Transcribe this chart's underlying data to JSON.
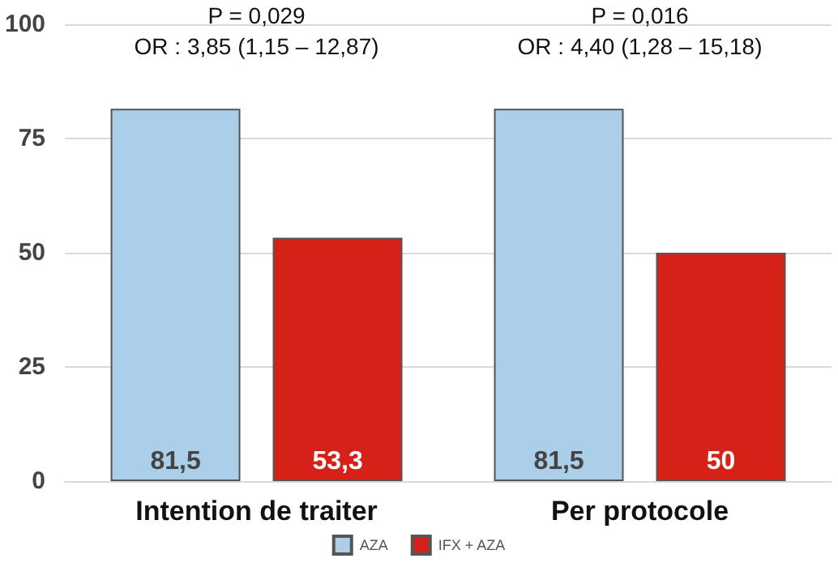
{
  "chart_data": {
    "type": "bar",
    "categories": [
      "Intention de traiter",
      "Per protocole"
    ],
    "series": [
      {
        "name": "AZA",
        "color": "#abcee9",
        "values": [
          81.5,
          81.5
        ],
        "value_labels": [
          "81,5",
          "81,5"
        ]
      },
      {
        "name": "IFX + AZA",
        "color": "#d62118",
        "values": [
          53.3,
          50
        ],
        "value_labels": [
          "53,3",
          "50"
        ]
      }
    ],
    "annotations": [
      "P = 0,029\nOR : 3,85 (1,15 – 12,87)",
      "P = 0,016\nOR : 4,40 (1,28 – 15,18)"
    ],
    "ylim": [
      0,
      100
    ],
    "yticks": [
      0,
      25,
      50,
      75,
      100
    ],
    "grid": "y",
    "legend": "bottom"
  }
}
